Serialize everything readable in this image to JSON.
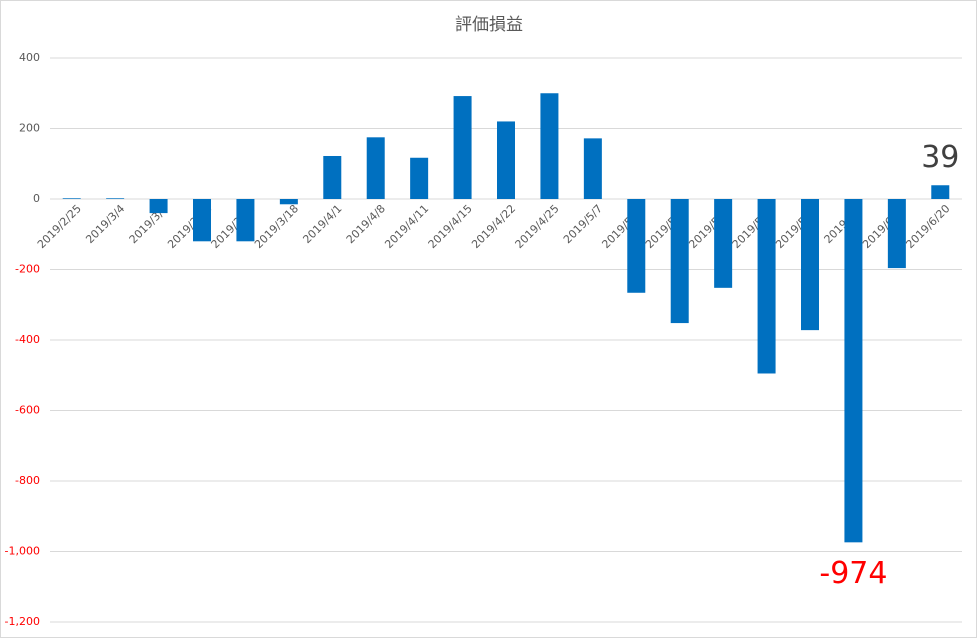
{
  "chart_data": {
    "type": "bar",
    "title": "評価損益",
    "categories": [
      "2019/2/25",
      "2019/3/4",
      "2019/3/7",
      "2019/3/11",
      "2019/3/14",
      "2019/3/18",
      "2019/4/1",
      "2019/4/8",
      "2019/4/11",
      "2019/4/15",
      "2019/4/22",
      "2019/4/25",
      "2019/5/7",
      "2019/5/13",
      "2019/5/16",
      "2019/5/20",
      "2019/5/23",
      "2019/5/27",
      "2019/6/3",
      "2019/6/10",
      "2019/6/20"
    ],
    "values": [
      2,
      2,
      -40,
      -120,
      -120,
      -15,
      122,
      175,
      117,
      292,
      220,
      300,
      172,
      -266,
      -352,
      -252,
      -495,
      -372,
      -974,
      -196,
      39
    ],
    "color": "#0070c0",
    "ylim": [
      -1200,
      400
    ],
    "yticks": [
      {
        "value": -1200,
        "label": "-1,200"
      },
      {
        "value": -1000,
        "label": "-1,000"
      },
      -800,
      -600,
      -400,
      -200,
      0,
      200,
      400
    ],
    "negative_tick_color": "#ff0000",
    "grid": true,
    "data_labels": [
      {
        "index": 18,
        "color": "#ff0000"
      },
      {
        "index": 20,
        "color": "#404040"
      }
    ]
  }
}
